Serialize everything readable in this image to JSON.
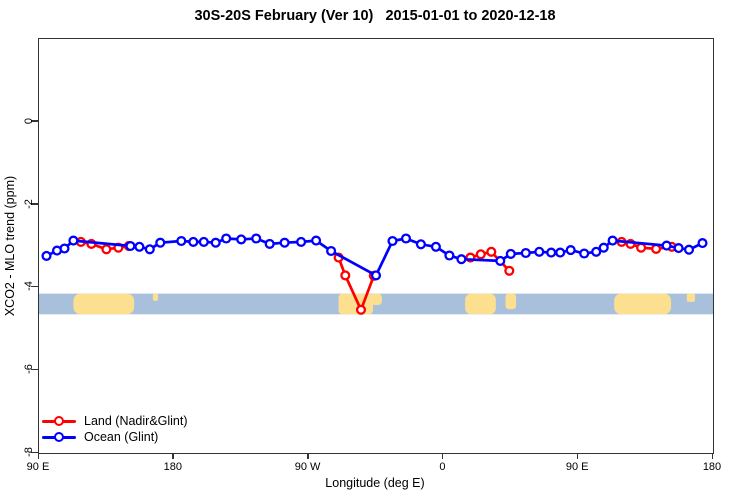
{
  "title": "30S-20S February (Ver 10)   2015-01-01 to 2020-12-18",
  "axes": {
    "x": {
      "label": "Longitude (deg E)",
      "range": [
        90,
        540
      ],
      "ticks": [
        {
          "pos": 90,
          "label": "90 E"
        },
        {
          "pos": 180,
          "label": "180"
        },
        {
          "pos": 270,
          "label": "90 W"
        },
        {
          "pos": 360,
          "label": "0"
        },
        {
          "pos": 450,
          "label": "90 E"
        },
        {
          "pos": 540,
          "label": "180"
        }
      ]
    },
    "y": {
      "label": "XCO2 - MLO trend (ppm)",
      "range": [
        -8,
        2
      ],
      "ticks": [
        {
          "pos": 0,
          "label": "0"
        },
        {
          "pos": -2,
          "label": "-2"
        },
        {
          "pos": -4,
          "label": "-4"
        },
        {
          "pos": -6,
          "label": "-6"
        },
        {
          "pos": -8,
          "label": "-8"
        }
      ]
    }
  },
  "legend": [
    {
      "label": "Land (Nadir&Glint)",
      "color": "#ff0000"
    },
    {
      "label": "Ocean (Glint)",
      "color": "#0000ff"
    }
  ],
  "chart_data": {
    "type": "line",
    "title": "30S-20S February (Ver 10)   2015-01-01 to 2020-12-18",
    "xlabel": "Longitude (deg E)",
    "ylabel": "XCO2 - MLO trend (ppm)",
    "xlim": [
      90,
      540
    ],
    "ylim": [
      -8,
      2
    ],
    "x_note": "longitude unwrapped eastward from 90E: 180=180, 270=90W, 360=0, 450=90E, 540=180",
    "marker": "open-circle",
    "grid": false,
    "legend_position": "bottom-left",
    "series": [
      {
        "name": "Land (Nadir&Glint)",
        "color": "#ff0000",
        "segments": [
          [
            [
              118,
              -2.9
            ],
            [
              125,
              -2.95
            ],
            [
              135,
              -3.08
            ],
            [
              143,
              -3.04
            ],
            [
              150,
              -3.0
            ]
          ],
          [
            [
              290,
              -3.28
            ],
            [
              294.5,
              -3.71
            ],
            [
              305,
              -4.54
            ],
            [
              313.5,
              -3.72
            ]
          ],
          [
            [
              378,
              -3.28
            ],
            [
              385,
              -3.2
            ],
            [
              392,
              -3.14
            ],
            [
              404,
              -3.6
            ]
          ],
          [
            [
              479,
              -2.9
            ],
            [
              485,
              -2.95
            ],
            [
              492,
              -3.04
            ],
            [
              502,
              -3.07
            ],
            [
              512.5,
              -3.02
            ]
          ]
        ]
      },
      {
        "name": "Ocean (Glint)",
        "color": "#0000ff",
        "segments": [
          [
            [
              95,
              -3.24
            ],
            [
              102,
              -3.11
            ],
            [
              107,
              -3.06
            ],
            [
              113,
              -2.87
            ],
            [
              151,
              -3.0
            ],
            [
              157,
              -3.02
            ],
            [
              164,
              -3.08
            ],
            [
              171,
              -2.92
            ],
            [
              185,
              -2.88
            ],
            [
              193,
              -2.9
            ],
            [
              200,
              -2.9
            ],
            [
              208,
              -2.92
            ],
            [
              215,
              -2.82
            ],
            [
              225,
              -2.84
            ],
            [
              235,
              -2.82
            ],
            [
              244,
              -2.95
            ],
            [
              254,
              -2.92
            ],
            [
              265,
              -2.9
            ],
            [
              275,
              -2.87
            ],
            [
              285,
              -3.12
            ],
            [
              315,
              -3.71
            ],
            [
              326,
              -2.88
            ],
            [
              335,
              -2.82
            ],
            [
              345,
              -2.96
            ],
            [
              355,
              -3.02
            ],
            [
              364,
              -3.23
            ],
            [
              372,
              -3.32
            ],
            [
              398,
              -3.36
            ],
            [
              405,
              -3.19
            ],
            [
              415,
              -3.17
            ],
            [
              424,
              -3.14
            ],
            [
              432,
              -3.16
            ],
            [
              438,
              -3.16
            ],
            [
              445,
              -3.1
            ],
            [
              454,
              -3.18
            ],
            [
              462,
              -3.14
            ],
            [
              467,
              -3.04
            ],
            [
              473,
              -2.87
            ],
            [
              509,
              -2.99
            ],
            [
              517,
              -3.05
            ],
            [
              524,
              -3.09
            ],
            [
              533,
              -2.93
            ]
          ]
        ]
      }
    ],
    "map_band": {
      "description": "strip map of the 30S-20S latitude band along the x axis",
      "y_top": -4.15,
      "y_bottom": -4.65,
      "ocean_color": "#a9c0dd",
      "land_color": "#fcdf8f",
      "land_patches": [
        {
          "name": "australia",
          "from": 113,
          "to": 153.5,
          "top": 0,
          "height": 1,
          "rx": 7
        },
        {
          "name": "new-caledonia",
          "from": 166,
          "to": 169.5,
          "top": 0,
          "height": 0.35,
          "rx": 2
        },
        {
          "name": "south-america",
          "from": 290,
          "to": 313,
          "top": 0,
          "height": 1,
          "rx": 4
        },
        {
          "name": "south-america-east",
          "from": 311,
          "to": 319,
          "top": 0,
          "height": 0.55,
          "rx": 4
        },
        {
          "name": "africa",
          "from": 374.5,
          "to": 395,
          "top": 0,
          "height": 1,
          "rx": 6
        },
        {
          "name": "madagascar",
          "from": 401.5,
          "to": 408.5,
          "top": 0,
          "height": 0.75,
          "rx": 3
        },
        {
          "name": "australia-2",
          "from": 474,
          "to": 512,
          "top": 0,
          "height": 1,
          "rx": 7
        },
        {
          "name": "new-caledonia-2",
          "from": 522.5,
          "to": 528,
          "top": 0,
          "height": 0.4,
          "rx": 2
        }
      ]
    }
  }
}
